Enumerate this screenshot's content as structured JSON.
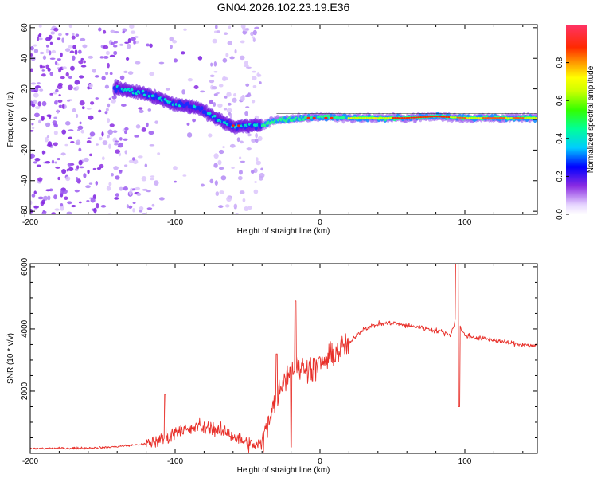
{
  "title": "GN04.2026.102.23.19.E36",
  "colors": {
    "line": "#e8302a",
    "frame": "#000000",
    "background": "#ffffff"
  },
  "chart_data": [
    {
      "type": "heatmap",
      "title": "GN04.2026.102.23.19.E36",
      "xlabel": "Height of straight line (km)",
      "ylabel": "Frequency (Hz)",
      "xlim": [
        -200,
        150
      ],
      "ylim": [
        -62,
        62
      ],
      "xticks": [
        -200,
        -100,
        0,
        100
      ],
      "xtick_labels": [
        "-200",
        "-100",
        "0",
        "100"
      ],
      "yticks": [
        60,
        40,
        20,
        0,
        -20,
        -40,
        -60
      ],
      "ytick_labels": [
        "60",
        "40",
        "20",
        "0",
        "-20",
        "-40",
        "-60"
      ],
      "ridge": {
        "x": [
          -140,
          -120,
          -100,
          -85,
          -70,
          -60,
          -50,
          -40,
          -30,
          -20,
          0,
          20,
          40,
          60,
          80,
          100,
          120,
          150
        ],
        "y": [
          20,
          17,
          10,
          8,
          0,
          -5,
          -4,
          -4,
          0,
          0,
          2,
          1,
          1,
          1,
          2,
          1,
          1,
          1
        ]
      },
      "colorbar": {
        "label": "Normalized spectral amplitude",
        "range": [
          0,
          1
        ],
        "ticks": [
          0.0,
          0.2,
          0.4,
          0.6,
          0.8
        ],
        "tick_labels": [
          "0.0",
          "0.2",
          "0.4",
          "0.6",
          "0.8"
        ]
      }
    },
    {
      "type": "line",
      "xlabel": "Height of straight line (km)",
      "ylabel": "SNR (10 * v/v)",
      "xlim": [
        -200,
        150
      ],
      "ylim": [
        0,
        6100
      ],
      "xticks": [
        -200,
        -100,
        0,
        100
      ],
      "xtick_labels": [
        "-200",
        "-100",
        "0",
        "100"
      ],
      "yticks": [
        2000,
        4000,
        6000
      ],
      "ytick_labels": [
        "2000",
        "4000",
        "6000"
      ],
      "series": [
        {
          "name": "SNR",
          "x": [
            -200,
            -150,
            -120,
            -105,
            -100,
            -95,
            -90,
            -85,
            -80,
            -75,
            -70,
            -65,
            -60,
            -55,
            -50,
            -45,
            -40,
            -35,
            -30,
            -25,
            -20,
            -15,
            -10,
            -5,
            0,
            5,
            10,
            15,
            20,
            25,
            30,
            40,
            50,
            60,
            70,
            80,
            85,
            90,
            93,
            95,
            97,
            100,
            110,
            120,
            130,
            140,
            150
          ],
          "values": [
            150,
            180,
            300,
            500,
            700,
            800,
            700,
            900,
            800,
            850,
            700,
            700,
            550,
            450,
            300,
            250,
            300,
            1200,
            1800,
            2400,
            2700,
            2700,
            2800,
            2700,
            2900,
            3000,
            3200,
            3400,
            3500,
            3800,
            4000,
            4150,
            4200,
            4100,
            4050,
            3950,
            3900,
            3800,
            4200,
            5200,
            4000,
            3800,
            3700,
            3650,
            3550,
            3500,
            3450
          ]
        }
      ]
    }
  ]
}
